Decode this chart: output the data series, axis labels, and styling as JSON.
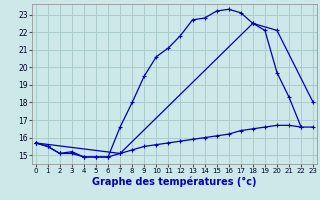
{
  "title": "Graphe des températures (°c)",
  "background_color": "#cce8e8",
  "grid_color": "#aacccc",
  "line_color": "#0000bb",
  "x_ticks": [
    0,
    1,
    2,
    3,
    4,
    5,
    6,
    7,
    8,
    9,
    10,
    11,
    12,
    13,
    14,
    15,
    16,
    17,
    18,
    19,
    20,
    21,
    22,
    23
  ],
  "y_ticks": [
    15,
    16,
    17,
    18,
    19,
    20,
    21,
    22,
    23
  ],
  "xlim": [
    -0.3,
    23.3
  ],
  "ylim": [
    14.5,
    23.6
  ],
  "line1_x": [
    0,
    1,
    2,
    3,
    4,
    5,
    6,
    7,
    8,
    9,
    10,
    11,
    12,
    13,
    14,
    15,
    16,
    17,
    18,
    19,
    20,
    21,
    22
  ],
  "line1_y": [
    15.7,
    15.5,
    15.1,
    15.1,
    14.9,
    14.9,
    14.9,
    16.6,
    18.0,
    19.5,
    20.6,
    21.1,
    21.8,
    22.7,
    22.8,
    23.2,
    23.3,
    23.1,
    22.5,
    22.1,
    19.7,
    18.3,
    16.6
  ],
  "line2_x": [
    0,
    1,
    2,
    3,
    4,
    5,
    6,
    7,
    8,
    9,
    10,
    11,
    12,
    13,
    14,
    15,
    16,
    17,
    18,
    19,
    20,
    21,
    22,
    23
  ],
  "line2_y": [
    15.7,
    15.5,
    15.1,
    15.2,
    14.9,
    14.9,
    14.9,
    15.1,
    15.3,
    15.5,
    15.6,
    15.7,
    15.8,
    15.9,
    16.0,
    16.1,
    16.2,
    16.4,
    16.5,
    16.6,
    16.7,
    16.7,
    16.6,
    16.6
  ],
  "line3_x": [
    0,
    7,
    18,
    20,
    23
  ],
  "line3_y": [
    15.7,
    15.1,
    22.5,
    22.1,
    18.0
  ],
  "xlabel_fontsize": 7,
  "tick_fontsize": 5.5,
  "linewidth": 0.9,
  "markersize": 2.5
}
